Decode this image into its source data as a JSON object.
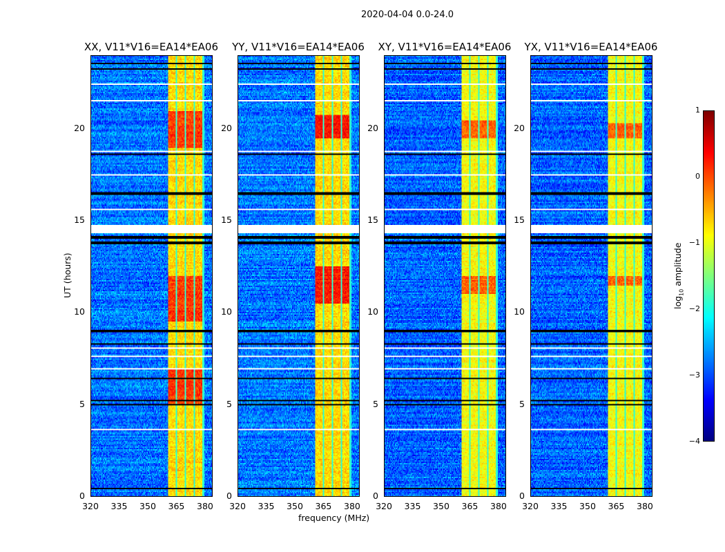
{
  "suptitle": "2020-04-04 0.0-24.0",
  "chart_data": {
    "type": "heatmap",
    "title": "2020-04-04 0.0-24.0",
    "xlabel": "frequency (MHz)",
    "ylabel": "UT (hours)",
    "xlim": [
      320,
      384
    ],
    "ylim": [
      0,
      24
    ],
    "xticks": [
      "320",
      "335",
      "350",
      "365",
      "380"
    ],
    "xtick_values": [
      320,
      335,
      350,
      365,
      380
    ],
    "yticks": [
      "0",
      "5",
      "10",
      "15",
      "20"
    ],
    "ytick_values": [
      0,
      5,
      10,
      15,
      20
    ],
    "colormap": "jet",
    "colorbar": {
      "label": "log10 amplitude",
      "label_main": "log",
      "label_sub": "10",
      "label_rest": " amplitude",
      "range": [
        -4,
        1
      ],
      "ticks": [
        "1",
        "0",
        "−1",
        "−2",
        "−3",
        "−4"
      ],
      "tick_values": [
        1,
        0,
        -1,
        -2,
        -3,
        -4
      ]
    },
    "panels": [
      {
        "title": "XX, V11*V16=EA14*EA06",
        "background_log_amp": -2.8,
        "band_mhz": [
          361,
          380
        ],
        "band_log_amp": -0.7,
        "strong_hours": [
          [
            5,
            7
          ],
          [
            9.5,
            12
          ],
          [
            19,
            21
          ]
        ],
        "strong_log_amp": 0.1
      },
      {
        "title": "YY, V11*V16=EA14*EA06",
        "background_log_amp": -2.8,
        "band_mhz": [
          361,
          380
        ],
        "band_log_amp": -0.7,
        "strong_hours": [
          [
            10.5,
            12.5
          ],
          [
            19.5,
            20.8
          ]
        ],
        "strong_log_amp": 0.3
      },
      {
        "title": "XY, V11*V16=EA14*EA06",
        "background_log_amp": -2.9,
        "band_mhz": [
          361,
          380
        ],
        "band_log_amp": -0.9,
        "strong_hours": [
          [
            11,
            12
          ],
          [
            19.5,
            20.5
          ]
        ],
        "strong_log_amp": -0.1
      },
      {
        "title": "YX, V11*V16=EA14*EA06",
        "background_log_amp": -2.9,
        "band_mhz": [
          361,
          380
        ],
        "band_log_amp": -0.9,
        "strong_hours": [
          [
            11.5,
            12
          ],
          [
            19.5,
            20.3
          ]
        ],
        "strong_log_amp": -0.1
      }
    ],
    "channel_gaps_mhz": [
      365.3,
      370,
      374.7,
      379.5
    ],
    "flagged_hours": [
      [
        14.3,
        14.8
      ],
      [
        22.45,
        22.5
      ],
      [
        21.55,
        21.6
      ],
      [
        18.75,
        18.8
      ],
      [
        17.5,
        17.55
      ],
      [
        15.6,
        15.65
      ],
      [
        13.1,
        13.15
      ],
      [
        8.0,
        8.1
      ],
      [
        7.6,
        7.65
      ],
      [
        6.9,
        6.95
      ],
      [
        3.6,
        3.65
      ],
      [
        1.7,
        1.75
      ]
    ],
    "dark_hours": [
      0.4,
      5.0,
      5.2,
      8.3,
      13.8,
      14.1,
      18.65,
      23.3,
      23.6,
      9.0,
      16.5,
      6.4
    ]
  }
}
